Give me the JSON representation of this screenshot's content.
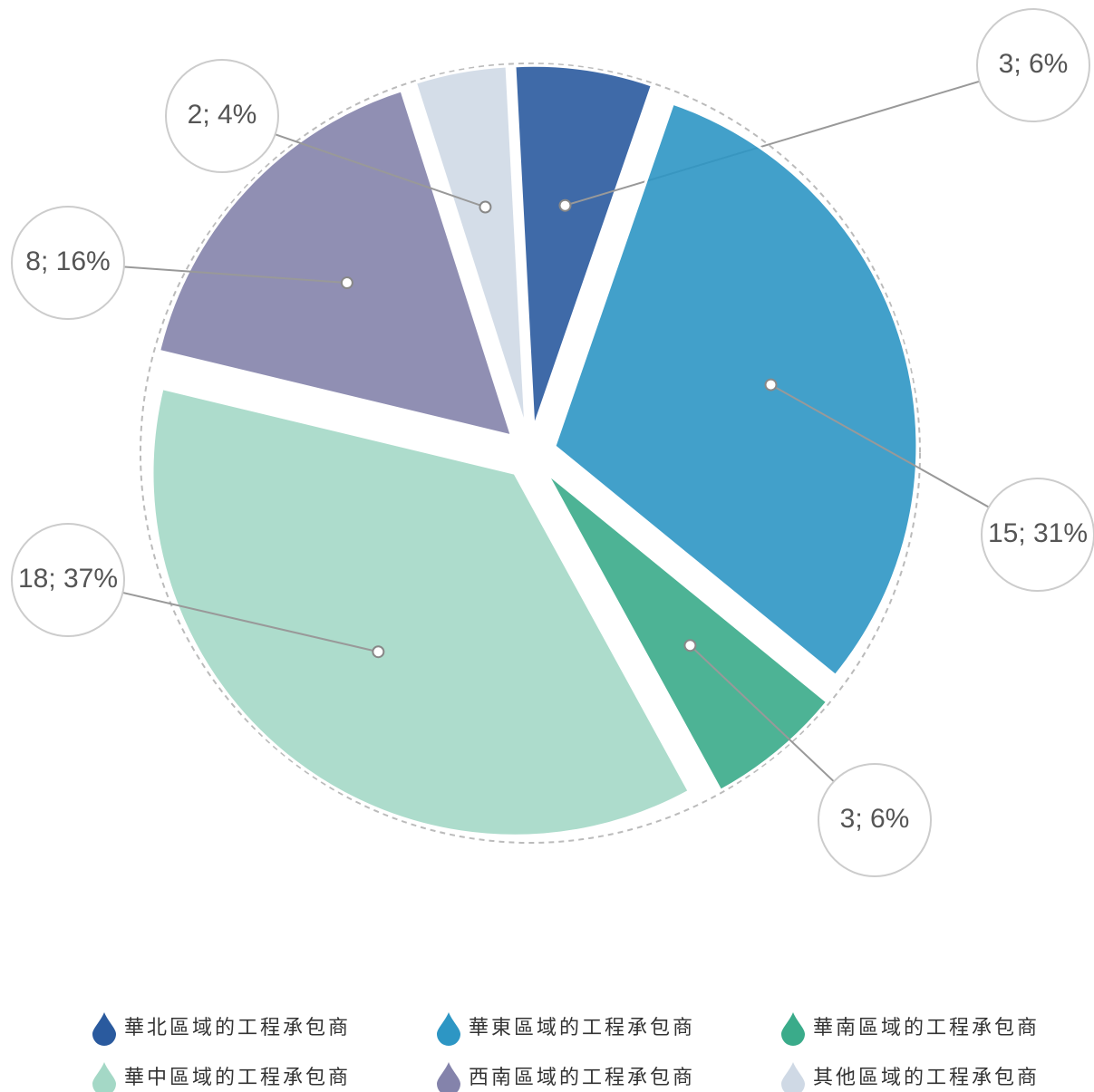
{
  "chart_data": {
    "type": "pie",
    "categories": [
      "華北區域的工程承包商",
      "華東區域的工程承包商",
      "華南區域的工程承包商",
      "華中區域的工程承包商",
      "西南區域的工程承包商",
      "其他區域的工程承包商"
    ],
    "values": [
      3,
      15,
      3,
      18,
      8,
      2
    ],
    "value_labels": [
      "3; 6%",
      "15; 31%",
      "3; 6%",
      "18; 37%",
      "8; 16%",
      "2; 4%"
    ],
    "colors": [
      "#2a5a9e",
      "#2d96c4",
      "#3aab8a",
      "#a4d8c6",
      "#8483ab",
      "#cfd9e5"
    ],
    "legend": "bottom"
  }
}
